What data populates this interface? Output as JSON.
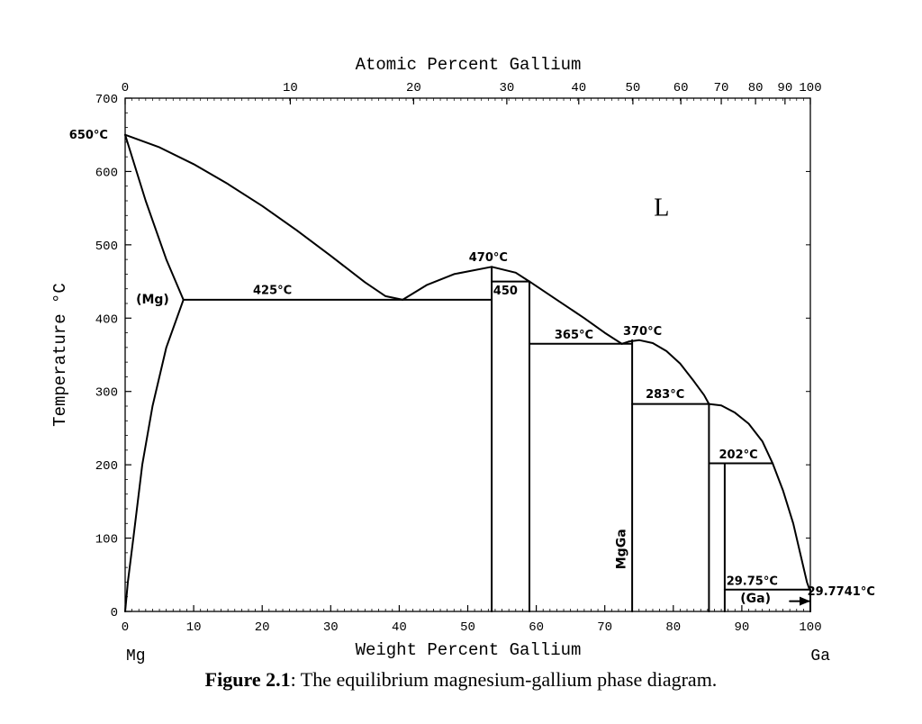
{
  "chart_data": {
    "type": "phase-diagram",
    "title_top_axis": "Atomic Percent Gallium",
    "xlabel": "Weight Percent Gallium",
    "ylabel": "Temperature °C",
    "left_element": "Mg",
    "right_element": "Ga",
    "xlim": [
      0,
      100
    ],
    "ylim": [
      0,
      700
    ],
    "x_ticks": [
      0,
      10,
      20,
      30,
      40,
      50,
      60,
      70,
      80,
      90,
      100
    ],
    "y_ticks": [
      0,
      100,
      200,
      300,
      400,
      500,
      600,
      700
    ],
    "top_ticks": [
      {
        "label": "0",
        "wt": 0
      },
      {
        "label": "10",
        "wt": 24.1
      },
      {
        "label": "20",
        "wt": 42.1
      },
      {
        "label": "30",
        "wt": 55.7
      },
      {
        "label": "40",
        "wt": 66.2
      },
      {
        "label": "50",
        "wt": 74.1
      },
      {
        "label": "60",
        "wt": 81.1
      },
      {
        "label": "70",
        "wt": 87.0
      },
      {
        "label": "80",
        "wt": 92.0
      },
      {
        "label": "90",
        "wt": 96.3
      },
      {
        "label": "100",
        "wt": 100
      }
    ],
    "region_labels": [
      {
        "text": "L",
        "wt": 78.3,
        "temp": 540
      },
      {
        "text": "(Mg)",
        "wt": 4.0,
        "temp": 420
      },
      {
        "text": "MgGa",
        "wt": 73.0,
        "temp": 85
      },
      {
        "text": "(Ga)",
        "wt": 92.0,
        "temp": 12
      }
    ],
    "temperature_labels": [
      {
        "text": "650°C",
        "wt": -2.5,
        "temp": 645
      },
      {
        "text": "425°C",
        "wt": 21.5,
        "temp": 433
      },
      {
        "text": "470°C",
        "wt": 53.0,
        "temp": 478
      },
      {
        "text": "450",
        "wt": 55.5,
        "temp": 432
      },
      {
        "text": "365°C",
        "wt": 65.5,
        "temp": 372
      },
      {
        "text": "370°C",
        "wt": 75.5,
        "temp": 377
      },
      {
        "text": "283°C",
        "wt": 78.8,
        "temp": 291
      },
      {
        "text": "202°C",
        "wt": 89.5,
        "temp": 209
      },
      {
        "text": "29.75°C",
        "wt": 91.5,
        "temp": 36
      },
      {
        "text": "29.7741°C",
        "wt": 104.5,
        "temp": 22
      }
    ],
    "lines": [
      {
        "name": "liquidus-mg-side",
        "points": [
          [
            0,
            650
          ],
          [
            5,
            633
          ],
          [
            10,
            610
          ],
          [
            15,
            583
          ],
          [
            20,
            553
          ],
          [
            25,
            520
          ],
          [
            30,
            485
          ],
          [
            35,
            449
          ],
          [
            38,
            430
          ],
          [
            40.5,
            425
          ]
        ]
      },
      {
        "name": "mg-solidus",
        "points": [
          [
            0,
            650
          ],
          [
            3,
            560
          ],
          [
            6,
            480
          ],
          [
            8.5,
            425
          ]
        ]
      },
      {
        "name": "mg-solvus",
        "points": [
          [
            8.5,
            425
          ],
          [
            6,
            360
          ],
          [
            4,
            280
          ],
          [
            2.5,
            200
          ],
          [
            1.2,
            100
          ],
          [
            0.4,
            40
          ],
          [
            0,
            0
          ]
        ]
      },
      {
        "name": "eutectic-425",
        "points": [
          [
            8.5,
            425
          ],
          [
            53.5,
            425
          ]
        ]
      },
      {
        "name": "liquidus-dome-470",
        "points": [
          [
            40.5,
            425
          ],
          [
            44,
            445
          ],
          [
            48,
            460
          ],
          [
            53.5,
            470
          ],
          [
            57,
            462
          ],
          [
            59,
            450
          ]
        ]
      },
      {
        "name": "liquidus-450-365",
        "points": [
          [
            59,
            450
          ],
          [
            63,
            425
          ],
          [
            67,
            400
          ],
          [
            70,
            380
          ],
          [
            72.5,
            365
          ]
        ]
      },
      {
        "name": "peritectic-450",
        "points": [
          [
            53.5,
            450
          ],
          [
            59,
            450
          ]
        ]
      },
      {
        "name": "eutectic-365",
        "points": [
          [
            59,
            365
          ],
          [
            74,
            365
          ]
        ]
      },
      {
        "name": "liquidus-370",
        "points": [
          [
            72.5,
            365
          ],
          [
            73.5,
            368
          ],
          [
            75,
            370
          ],
          [
            77,
            366
          ],
          [
            79,
            355
          ],
          [
            81,
            338
          ],
          [
            83,
            314
          ],
          [
            84.5,
            295
          ],
          [
            85.2,
            283
          ]
        ]
      },
      {
        "name": "peritectic-283",
        "points": [
          [
            74,
            283
          ],
          [
            85.2,
            283
          ]
        ]
      },
      {
        "name": "liquidus-283-202",
        "points": [
          [
            85.2,
            283
          ],
          [
            87,
            281
          ],
          [
            89,
            271
          ],
          [
            91,
            256
          ],
          [
            93,
            232
          ],
          [
            94.5,
            202
          ]
        ]
      },
      {
        "name": "peritectic-202",
        "points": [
          [
            85.2,
            202
          ],
          [
            94.5,
            202
          ]
        ]
      },
      {
        "name": "liquidus-202-ga",
        "points": [
          [
            94.5,
            202
          ],
          [
            96,
            165
          ],
          [
            97.5,
            120
          ],
          [
            98.5,
            80
          ],
          [
            99.5,
            40
          ],
          [
            99.9,
            29.77
          ]
        ]
      },
      {
        "name": "eutectic-29",
        "points": [
          [
            87.5,
            29.75
          ],
          [
            100,
            29.75
          ]
        ]
      },
      {
        "name": "ga-arrow",
        "points": [
          [
            97,
            14
          ],
          [
            99.8,
            14
          ]
        ]
      },
      {
        "name": "compound-53.5",
        "points": [
          [
            53.5,
            470
          ],
          [
            53.5,
            0
          ]
        ]
      },
      {
        "name": "compound-59",
        "points": [
          [
            59,
            450
          ],
          [
            59,
            0
          ]
        ]
      },
      {
        "name": "compound-74",
        "points": [
          [
            74,
            370
          ],
          [
            74,
            0
          ]
        ]
      },
      {
        "name": "compound-85.2",
        "points": [
          [
            85.2,
            283
          ],
          [
            85.2,
            0
          ]
        ]
      },
      {
        "name": "compound-87.5",
        "points": [
          [
            87.5,
            202
          ],
          [
            87.5,
            0
          ]
        ]
      },
      {
        "name": "ga-line",
        "points": [
          [
            100,
            29.77
          ],
          [
            100,
            0
          ]
        ]
      }
    ]
  },
  "caption": {
    "number": "Figure 2.1",
    "text": ": The equilibrium magnesium-gallium phase diagram."
  }
}
